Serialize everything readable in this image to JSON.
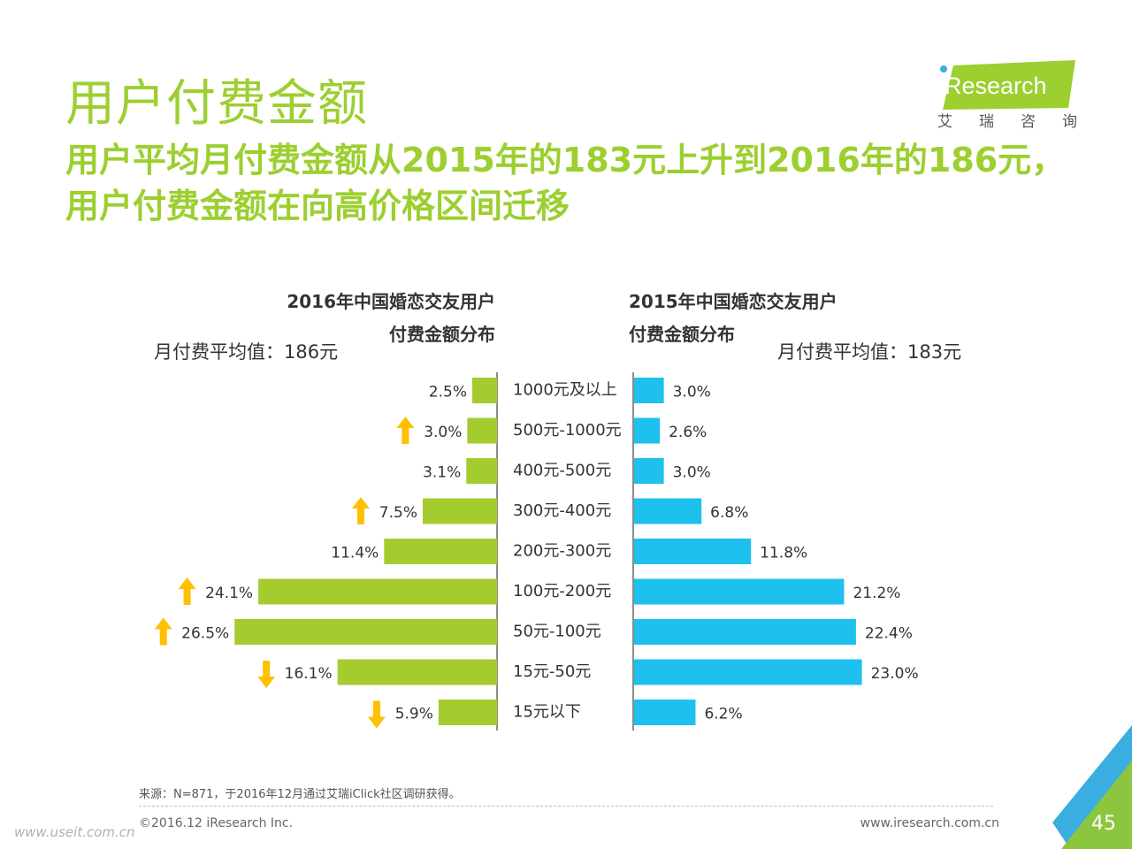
{
  "page": {
    "title": "用户付费金额",
    "subtitle": "用户平均月付费金额从2015年的183元上升到2016年的186元，用户付费金额在向高价格区间迁移",
    "logo": {
      "brand": "iResearch",
      "tagline": "艾 瑞 咨 询"
    },
    "left_chart_title_line1": "2016年中国婚恋交友用户",
    "left_chart_title_line2": "付费金额分布",
    "right_chart_title_line1": "2015年中国婚恋交友用户",
    "right_chart_title_line2": "付费金额分布",
    "left_average": "月付费平均值：186元",
    "right_average": "月付费平均值：183元",
    "source": "来源：N=871，于2016年12月通过艾瑞iClick社区调研获得。",
    "copyright": "©2016.12 iResearch Inc.",
    "website": "www.iresearch.com.cn",
    "watermark": "www.useit.com.cn",
    "page_number": "45",
    "colors": {
      "title_green": "#9ccf2f",
      "bar_2016": "#a5cc2f",
      "bar_2015": "#1ec0ee",
      "arrow": "#ffc000",
      "corner_blue": "#3aaee0",
      "corner_green": "#8cc63f"
    }
  },
  "chart_data": {
    "type": "bar",
    "orientation": "horizontal-butterfly",
    "categories": [
      "1000元及以上",
      "500元-1000元",
      "400元-500元",
      "300元-400元",
      "200元-300元",
      "100元-200元",
      "50元-100元",
      "15元-50元",
      "15元以下"
    ],
    "series": [
      {
        "name": "2016年中国婚恋交友用户付费金额分布",
        "values": [
          2.5,
          3.0,
          3.1,
          7.5,
          11.4,
          24.1,
          26.5,
          16.1,
          5.9
        ],
        "labels": [
          "2.5%",
          "3.0%",
          "3.1%",
          "7.5%",
          "11.4%",
          "24.1%",
          "26.5%",
          "16.1%",
          "5.9%"
        ],
        "trend": [
          "",
          "up",
          "",
          "up",
          "",
          "up",
          "up",
          "down",
          "down"
        ]
      },
      {
        "name": "2015年中国婚恋交友用户付费金额分布",
        "values": [
          3.0,
          2.6,
          3.0,
          6.8,
          11.8,
          21.2,
          22.4,
          23.0,
          6.2
        ],
        "labels": [
          "3.0%",
          "2.6%",
          "3.0%",
          "6.8%",
          "11.8%",
          "21.2%",
          "22.4%",
          "23.0%",
          "6.2%"
        ]
      }
    ]
  }
}
